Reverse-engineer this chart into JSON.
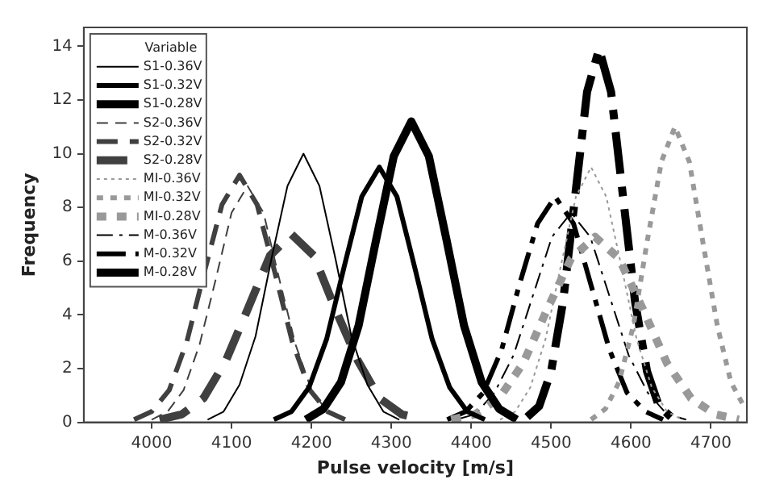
{
  "chart_data": {
    "type": "line",
    "xlabel": "Pulse velocity [m/s]",
    "ylabel": "Frequency",
    "legend_title": "Variable",
    "legend": "top left",
    "grid": false,
    "marker": "none",
    "xlim": [
      3915,
      4745
    ],
    "xticks": [
      4000,
      4100,
      4200,
      4300,
      4400,
      4500,
      4600,
      4700
    ],
    "ylim": [
      0,
      14.7
    ],
    "yticks": [
      0,
      2,
      4,
      6,
      8,
      10,
      12,
      14
    ],
    "series": [
      {
        "name": "S1-0.36V",
        "color": "#000000",
        "line_style": "solid",
        "x": [
          4070,
          4090,
          4110,
          4130,
          4150,
          4170,
          4190,
          4210,
          4230,
          4250,
          4270,
          4290,
          4310
        ],
        "values": [
          0.1,
          0.4,
          1.4,
          3.2,
          6.1,
          8.8,
          10,
          8.8,
          6.1,
          3.2,
          1.4,
          0.4,
          0.1
        ]
      },
      {
        "name": "S1-0.32V",
        "color": "#000000",
        "line_style": "solid",
        "x": [
          4153,
          4175,
          4197,
          4219,
          4241,
          4263,
          4285,
          4307,
          4329,
          4351,
          4373,
          4395,
          4417
        ],
        "values": [
          0.1,
          0.4,
          1.3,
          3.1,
          5.8,
          8.4,
          9.5,
          8.4,
          5.8,
          3.1,
          1.3,
          0.4,
          0.1
        ]
      },
      {
        "name": "S1-0.28V",
        "color": "#000000",
        "line_style": "solid",
        "x": [
          4193,
          4215,
          4237,
          4259,
          4281,
          4303,
          4325,
          4347,
          4369,
          4391,
          4413,
          4435,
          4457
        ],
        "values": [
          0.1,
          0.5,
          1.5,
          3.6,
          6.8,
          9.9,
          11.2,
          9.9,
          6.8,
          3.6,
          1.5,
          0.5,
          0.1
        ]
      },
      {
        "name": "S2-0.36V",
        "color": "#404040",
        "line_style": "dashed",
        "x": [
          4000,
          4020,
          4040,
          4060,
          4080,
          4100,
          4120,
          4140,
          4160,
          4180,
          4200,
          4220,
          4240
        ],
        "values": [
          0.1,
          0.4,
          1.2,
          2.9,
          5.3,
          7.8,
          8.8,
          7.8,
          5.3,
          2.9,
          1.2,
          0.4,
          0.1
        ]
      },
      {
        "name": "S2-0.32V",
        "color": "#404040",
        "line_style": "dashed",
        "x": [
          3978,
          4000,
          4022,
          4044,
          4066,
          4088,
          4110,
          4132,
          4154,
          4176,
          4198,
          4220,
          4242
        ],
        "values": [
          0.1,
          0.4,
          1.2,
          3.0,
          5.6,
          8.1,
          9.2,
          8.1,
          5.6,
          3.0,
          1.2,
          0.4,
          0.1
        ]
      },
      {
        "name": "S2-0.28V",
        "color": "#404040",
        "line_style": "dashed",
        "x": [
          4010,
          4038,
          4065,
          4093,
          4120,
          4148,
          4175,
          4203,
          4230,
          4258,
          4285,
          4313,
          4340
        ],
        "values": [
          0.1,
          0.3,
          0.9,
          2.3,
          4.2,
          6.2,
          7,
          6.2,
          4.2,
          2.3,
          0.9,
          0.3,
          0.1
        ]
      },
      {
        "name": "MI-0.36V",
        "color": "#999999",
        "line_style": "dotted",
        "x": [
          4436,
          4455,
          4474,
          4493,
          4512,
          4531,
          4550,
          4569,
          4588,
          4607,
          4626,
          4645,
          4664
        ],
        "values": [
          0.1,
          0.4,
          1.3,
          3.1,
          5.8,
          8.4,
          9.5,
          8.4,
          5.8,
          3.1,
          1.3,
          0.4,
          0.1
        ]
      },
      {
        "name": "MI-0.32V",
        "color": "#999999",
        "line_style": "dotted",
        "x": [
          4550,
          4568,
          4585,
          4603,
          4620,
          4638,
          4655,
          4673,
          4690,
          4708,
          4725,
          4743
        ],
        "values": [
          0.1,
          0.5,
          1.5,
          3.6,
          6.7,
          9.7,
          11,
          9.7,
          6.7,
          3.6,
          1.5,
          0.5
        ]
      },
      {
        "name": "MI-0.28V",
        "color": "#999999",
        "line_style": "dotted",
        "x": [
          4375,
          4405,
          4435,
          4465,
          4495,
          4525,
          4555,
          4585,
          4615,
          4645,
          4675,
          4705,
          4735
        ],
        "values": [
          0.1,
          0.3,
          0.9,
          2.2,
          4.2,
          6.1,
          6.9,
          6.1,
          4.2,
          2.2,
          0.9,
          0.3,
          0.1
        ]
      },
      {
        "name": "M-0.36V",
        "color": "#000000",
        "line_style": "dashdot",
        "x": [
          4381,
          4405,
          4429,
          4453,
          4477,
          4501,
          4525,
          4549,
          4573,
          4597,
          4621,
          4645,
          4669
        ],
        "values": [
          0.1,
          0.3,
          1.1,
          2.5,
          4.7,
          6.9,
          7.8,
          6.9,
          4.7,
          2.5,
          1.1,
          0.3,
          0.1
        ]
      },
      {
        "name": "M-0.32V",
        "color": "#000000",
        "line_style": "dashdot",
        "x": [
          4370,
          4393,
          4415,
          4438,
          4460,
          4483,
          4505,
          4528,
          4550,
          4573,
          4595,
          4618,
          4640
        ],
        "values": [
          0.1,
          0.4,
          1.1,
          2.7,
          5.1,
          7.4,
          8.4,
          7.4,
          5.1,
          2.7,
          1.1,
          0.4,
          0.1
        ]
      },
      {
        "name": "M-0.28V",
        "color": "#000000",
        "line_style": "dashdot",
        "x": [
          4470,
          4485,
          4500,
          4515,
          4530,
          4545,
          4560,
          4575,
          4590,
          4605,
          4620,
          4635,
          4650
        ],
        "values": [
          0.2,
          0.6,
          1.9,
          4.5,
          8.4,
          12.3,
          13.9,
          12.3,
          8.4,
          4.5,
          1.9,
          0.6,
          0.2
        ]
      }
    ]
  }
}
